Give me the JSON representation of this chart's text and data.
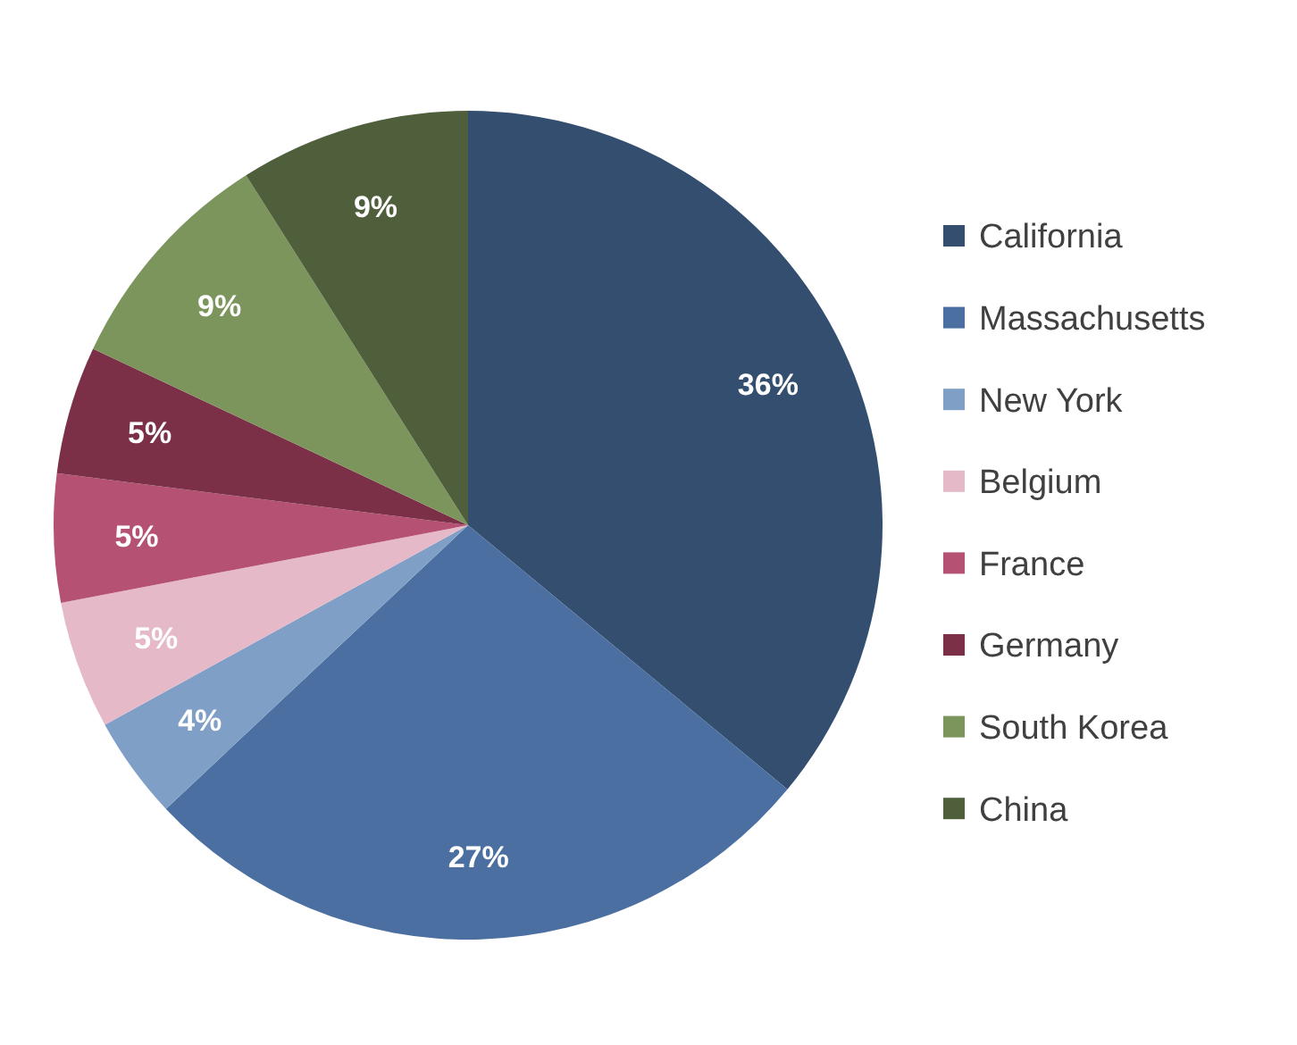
{
  "chart_data": {
    "type": "pie",
    "categories": [
      "California",
      "Massachusetts",
      "New York",
      "Belgium",
      "France",
      "Germany",
      "South Korea",
      "China"
    ],
    "values": [
      36,
      27,
      4,
      5,
      5,
      5,
      9,
      9
    ],
    "colors": [
      "#334e6e",
      "#4a6fa0",
      "#7f9fc6",
      "#e5b9c8",
      "#b55273",
      "#7b3048",
      "#7c955c",
      "#4f5e3b"
    ],
    "value_labels": [
      "36%",
      "27%",
      "4%",
      "5%",
      "5%",
      "5%",
      "9%",
      "9%"
    ],
    "legend": "right"
  }
}
